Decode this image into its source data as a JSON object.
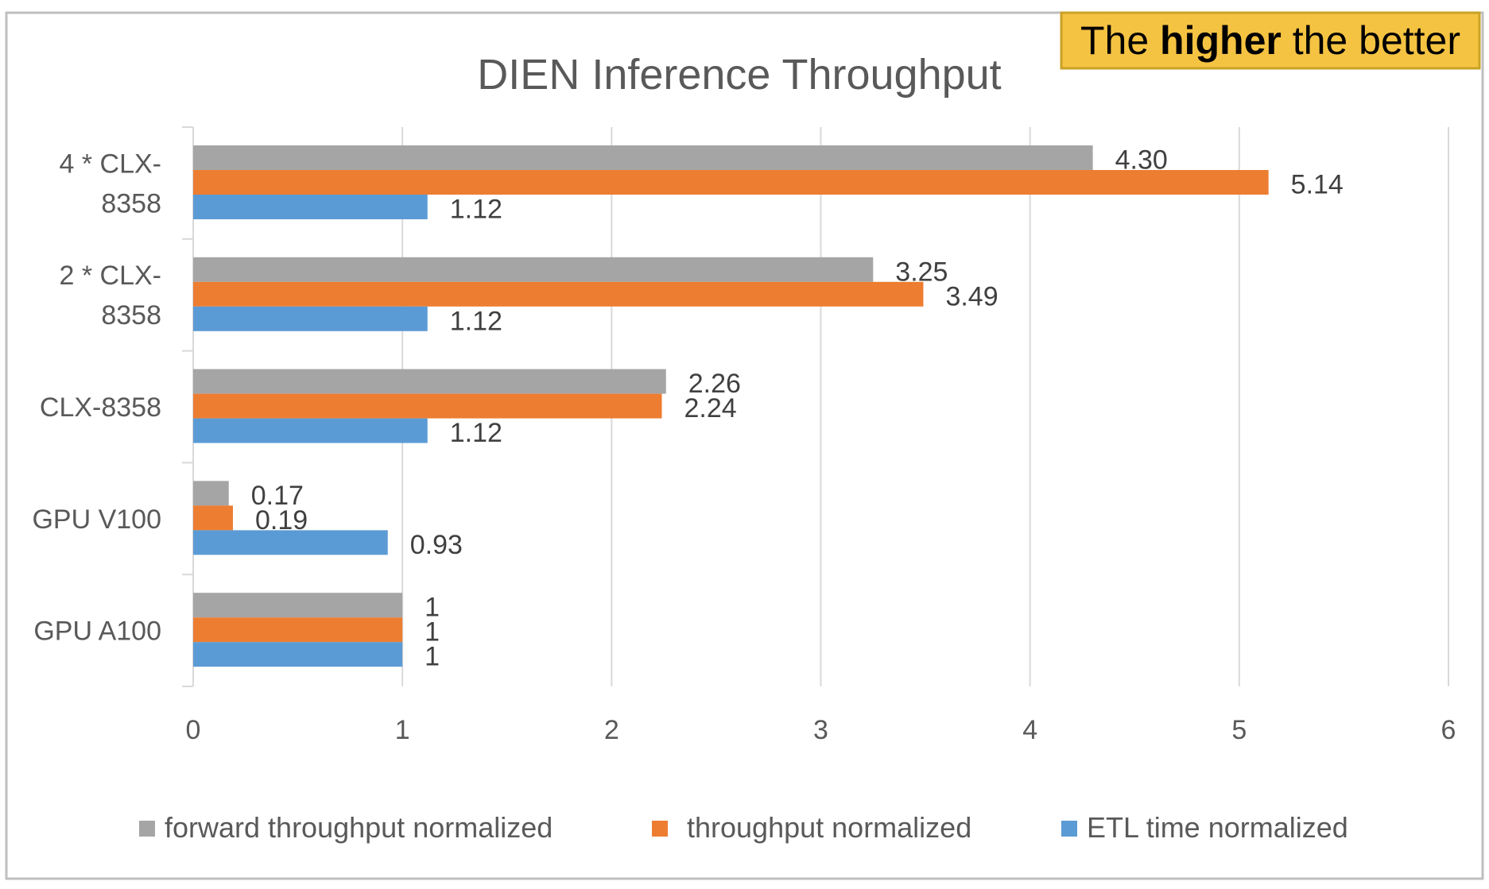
{
  "colors": {
    "forward": "#a5a5a5",
    "throughput": "#ed7d31",
    "etl": "#5b9bd5",
    "grid": "#d9d9d9",
    "axis_text": "#595959",
    "note_bg": "#f5c342",
    "note_border": "#c9a227",
    "frame": "#bfbfbf"
  },
  "annotation": {
    "pre": "The ",
    "bold": "higher",
    "post": " the better"
  },
  "chart_data": {
    "type": "bar",
    "orientation": "horizontal",
    "title": "DIEN Inference Throughput",
    "categories": [
      [
        "4 * CLX-",
        "8358"
      ],
      [
        "2 * CLX-",
        "8358"
      ],
      [
        "CLX-8358"
      ],
      [
        "GPU V100"
      ],
      [
        "GPU A100"
      ]
    ],
    "series": [
      {
        "name": "forward throughput normalized",
        "color": "#a5a5a5",
        "values": [
          4.3,
          3.25,
          2.26,
          0.17,
          1
        ],
        "labels": [
          "4.30",
          "3.25",
          "2.26",
          "0.17",
          "1"
        ]
      },
      {
        "name": "throughput normalized",
        "color": "#ed7d31",
        "values": [
          5.14,
          3.49,
          2.24,
          0.19,
          1
        ],
        "labels": [
          "5.14",
          "3.49",
          "2.24",
          "0.19",
          "1"
        ]
      },
      {
        "name": "ETL time normalized",
        "color": "#5b9bd5",
        "values": [
          1.12,
          1.12,
          1.12,
          0.93,
          1
        ],
        "labels": [
          "1.12",
          "1.12",
          "1.12",
          "0.93",
          "1"
        ]
      }
    ],
    "xlim": [
      0,
      6
    ],
    "xticks": [
      "0",
      "1",
      "2",
      "3",
      "4",
      "5",
      "6"
    ],
    "grid": true,
    "legend_position": "bottom"
  }
}
